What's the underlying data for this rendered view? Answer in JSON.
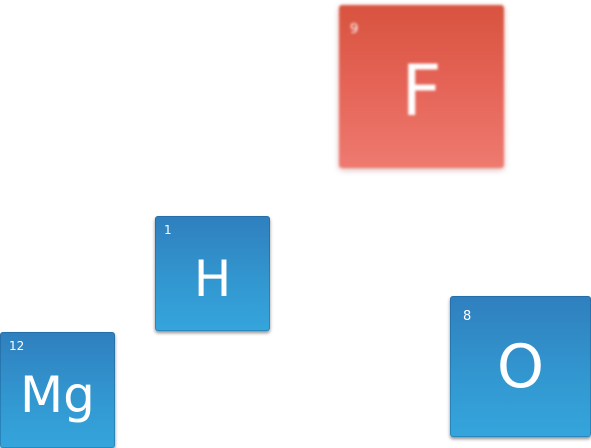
{
  "tiles": {
    "fluorine": {
      "number": "9",
      "symbol": "F",
      "color": "#e56457"
    },
    "hydrogen": {
      "number": "1",
      "symbol": "H",
      "color": "#3296cf"
    },
    "oxygen": {
      "number": "8",
      "symbol": "O",
      "color": "#3296cf"
    },
    "magnesium": {
      "number": "12",
      "symbol": "Mg",
      "color": "#3296cf"
    }
  }
}
